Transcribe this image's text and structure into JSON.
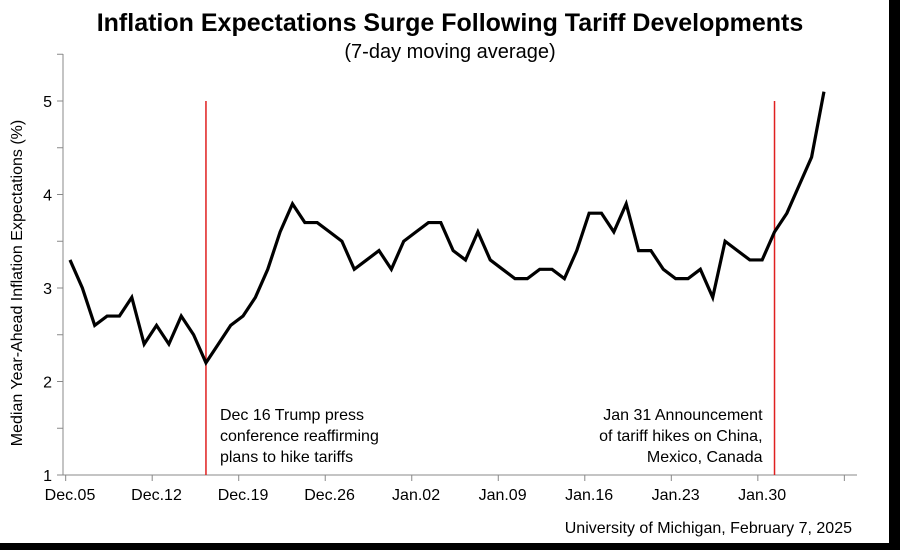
{
  "chart_data": {
    "type": "line",
    "title": "Inflation Expectations Surge Following Tariff Developments",
    "subtitle": "(7-day moving average)",
    "xlabel": "",
    "ylabel": "Median Year-Ahead Inflation Expectations (%)",
    "ylim": [
      1,
      5.5
    ],
    "yticks": [
      "1",
      "2",
      "3",
      "4",
      "5"
    ],
    "x_start": "Dec.05",
    "x_end": "Feb.04",
    "xticks": [
      "Dec.05",
      "Dec.12",
      "Dec.19",
      "Dec.26",
      "Jan.02",
      "Jan.09",
      "Jan.16",
      "Jan.23",
      "Jan.30"
    ],
    "grid": false,
    "series": [
      {
        "color": "#000000",
        "values": [
          3.3,
          3.0,
          2.6,
          2.7,
          2.7,
          2.9,
          2.4,
          2.6,
          2.4,
          2.7,
          2.5,
          2.2,
          2.4,
          2.6,
          2.7,
          2.9,
          3.2,
          3.6,
          3.9,
          3.7,
          3.7,
          3.6,
          3.5,
          3.2,
          3.3,
          3.4,
          3.2,
          3.5,
          3.6,
          3.7,
          3.7,
          3.4,
          3.3,
          3.6,
          3.3,
          3.2,
          3.1,
          3.1,
          3.2,
          3.2,
          3.1,
          3.4,
          3.8,
          3.8,
          3.6,
          3.9,
          3.4,
          3.4,
          3.2,
          3.1,
          3.1,
          3.2,
          2.9,
          3.5,
          3.4,
          3.3,
          3.3,
          3.6,
          3.8,
          4.1,
          4.4,
          5.1
        ]
      }
    ],
    "annotations": [
      {
        "date": "Dec.16",
        "color": "#e02020",
        "lines": [
          "Dec 16 Trump press",
          "conference reaffirming",
          "plans to hike tariffs"
        ]
      },
      {
        "date": "Jan.31",
        "color": "#e02020",
        "lines": [
          "Jan 31 Announcement",
          "of tariff hikes on China,",
          "Mexico, Canada"
        ]
      }
    ],
    "source": "University of Michigan, February 7, 2025"
  }
}
